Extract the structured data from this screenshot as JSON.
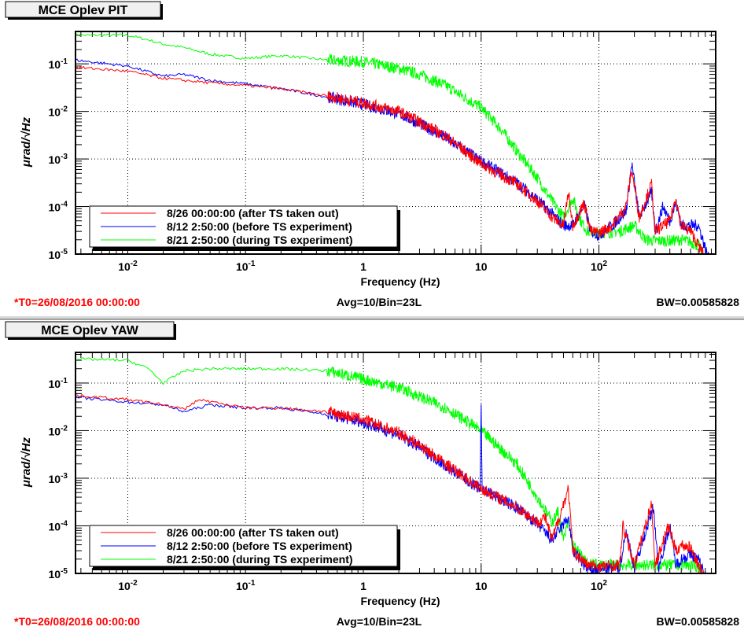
{
  "colors": {
    "red": "#ff0000",
    "blue": "#0000ff",
    "green": "#00ff00",
    "footer_red": "#ff0000"
  },
  "chart_data": [
    {
      "type": "line",
      "title": "MCE Oplev PIT",
      "xlabel": "Frequency (Hz)",
      "ylabel": "μrad/√Hz",
      "xscale": "log",
      "yscale": "log",
      "xlim": [
        0.0036,
        980
      ],
      "ylim": [
        1e-05,
        0.48
      ],
      "xticks": [
        {
          "v": 0.01,
          "base": "10",
          "exp": "-2"
        },
        {
          "v": 0.1,
          "base": "10",
          "exp": "-1"
        },
        {
          "v": 1,
          "base": "1",
          "exp": ""
        },
        {
          "v": 10,
          "base": "10",
          "exp": ""
        },
        {
          "v": 100,
          "base": "10",
          "exp": "2"
        }
      ],
      "yticks": [
        {
          "v": 0.1,
          "exp": "-1"
        },
        {
          "v": 0.01,
          "exp": "-2"
        },
        {
          "v": 0.001,
          "exp": "-3"
        },
        {
          "v": 0.0001,
          "exp": "-4"
        },
        {
          "v": 1e-05,
          "exp": "-5"
        }
      ],
      "grid": true,
      "legend_position": "bottom-left",
      "footer": {
        "t0": "*T0=26/08/2016 00:00:00",
        "avg": "Avg=10/Bin=23L",
        "bw": "BW=0.00585828"
      },
      "series": [
        {
          "name": "8/21 2:50:00 (during TS experiment)",
          "color": "green",
          "points": [
            [
              0.0036,
              0.4
            ],
            [
              0.01,
              0.4
            ],
            [
              0.015,
              0.32
            ],
            [
              0.02,
              0.26
            ],
            [
              0.03,
              0.22
            ],
            [
              0.05,
              0.16
            ],
            [
              0.1,
              0.13
            ],
            [
              0.2,
              0.15
            ],
            [
              0.5,
              0.12
            ],
            [
              1,
              0.11
            ],
            [
              2,
              0.08
            ],
            [
              3,
              0.06
            ],
            [
              5,
              0.035
            ],
            [
              10,
              0.012
            ],
            [
              15,
              0.004
            ],
            [
              20,
              0.0015
            ],
            [
              30,
              0.0004
            ],
            [
              40,
              0.00013
            ],
            [
              50,
              6e-05
            ],
            [
              60,
              0.00015
            ],
            [
              70,
              5e-05
            ],
            [
              80,
              3e-05
            ],
            [
              100,
              2.8e-05
            ],
            [
              150,
              3e-05
            ],
            [
              200,
              4e-05
            ],
            [
              250,
              2e-05
            ],
            [
              300,
              1.9e-05
            ],
            [
              400,
              1.9e-05
            ],
            [
              500,
              2e-05
            ],
            [
              600,
              1.8e-05
            ],
            [
              700,
              1.5e-05
            ],
            [
              900,
              5e-06
            ]
          ]
        },
        {
          "name": "8/12 2:50:00 (before TS experiment)",
          "color": "blue",
          "points": [
            [
              0.0036,
              0.12
            ],
            [
              0.01,
              0.09
            ],
            [
              0.02,
              0.055
            ],
            [
              0.03,
              0.06
            ],
            [
              0.05,
              0.045
            ],
            [
              0.1,
              0.038
            ],
            [
              0.2,
              0.03
            ],
            [
              0.5,
              0.02
            ],
            [
              1,
              0.014
            ],
            [
              2,
              0.009
            ],
            [
              3,
              0.0055
            ],
            [
              5,
              0.0028
            ],
            [
              10,
              0.0009
            ],
            [
              20,
              0.00032
            ],
            [
              30,
              0.00014
            ],
            [
              40,
              7e-05
            ],
            [
              50,
              4e-05
            ],
            [
              60,
              4e-05
            ],
            [
              75,
              0.00011
            ],
            [
              85,
              3e-05
            ],
            [
              100,
              2.5e-05
            ],
            [
              130,
              4e-05
            ],
            [
              170,
              8e-05
            ],
            [
              190,
              0.0008
            ],
            [
              220,
              6e-05
            ],
            [
              280,
              0.0002
            ],
            [
              300,
              3e-05
            ],
            [
              350,
              0.0001
            ],
            [
              400,
              5e-05
            ],
            [
              450,
              0.00012
            ],
            [
              500,
              4e-05
            ],
            [
              600,
              4e-05
            ],
            [
              700,
              4e-05
            ],
            [
              900,
              5e-06
            ]
          ]
        },
        {
          "name": "8/26 00:00:00 (after TS taken out)",
          "color": "red",
          "points": [
            [
              0.0036,
              0.085
            ],
            [
              0.01,
              0.07
            ],
            [
              0.02,
              0.05
            ],
            [
              0.03,
              0.045
            ],
            [
              0.05,
              0.04
            ],
            [
              0.1,
              0.035
            ],
            [
              0.2,
              0.03
            ],
            [
              0.5,
              0.021
            ],
            [
              1,
              0.015
            ],
            [
              2,
              0.01
            ],
            [
              3,
              0.006
            ],
            [
              5,
              0.003
            ],
            [
              10,
              0.0008
            ],
            [
              20,
              0.0003
            ],
            [
              30,
              0.00013
            ],
            [
              40,
              6e-05
            ],
            [
              50,
              4e-05
            ],
            [
              55,
              0.0002
            ],
            [
              60,
              4e-05
            ],
            [
              75,
              0.00012
            ],
            [
              85,
              3e-05
            ],
            [
              100,
              2.8e-05
            ],
            [
              130,
              4e-05
            ],
            [
              170,
              0.0001
            ],
            [
              190,
              0.0006
            ],
            [
              220,
              6e-05
            ],
            [
              280,
              0.0003
            ],
            [
              300,
              3e-05
            ],
            [
              400,
              5e-05
            ],
            [
              450,
              0.00015
            ],
            [
              500,
              4e-05
            ],
            [
              600,
              3e-05
            ],
            [
              900,
              5e-06
            ]
          ]
        }
      ]
    },
    {
      "type": "line",
      "title": "MCE Oplev YAW",
      "xlabel": "Frequency (Hz)",
      "ylabel": "μrad/√Hz",
      "xscale": "log",
      "yscale": "log",
      "xlim": [
        0.0036,
        980
      ],
      "ylim": [
        1e-05,
        0.44
      ],
      "xticks": [
        {
          "v": 0.01,
          "base": "10",
          "exp": "-2"
        },
        {
          "v": 0.1,
          "base": "10",
          "exp": "-1"
        },
        {
          "v": 1,
          "base": "1",
          "exp": ""
        },
        {
          "v": 10,
          "base": "10",
          "exp": ""
        },
        {
          "v": 100,
          "base": "10",
          "exp": "2"
        }
      ],
      "yticks": [
        {
          "v": 0.1,
          "exp": "-1"
        },
        {
          "v": 0.01,
          "exp": "-2"
        },
        {
          "v": 0.001,
          "exp": "-3"
        },
        {
          "v": 0.0001,
          "exp": "-4"
        },
        {
          "v": 1e-05,
          "exp": "-5"
        }
      ],
      "grid": true,
      "legend_position": "bottom-left",
      "footer": {
        "t0": "*T0=26/08/2016 00:00:00",
        "avg": "Avg=10/Bin=23L",
        "bw": "BW=0.00585828"
      },
      "series": [
        {
          "name": "8/21 2:50:00 (during TS experiment)",
          "color": "green",
          "points": [
            [
              0.0036,
              0.32
            ],
            [
              0.01,
              0.3
            ],
            [
              0.015,
              0.2
            ],
            [
              0.02,
              0.1
            ],
            [
              0.03,
              0.18
            ],
            [
              0.05,
              0.2
            ],
            [
              0.1,
              0.2
            ],
            [
              0.2,
              0.2
            ],
            [
              0.5,
              0.18
            ],
            [
              1,
              0.12
            ],
            [
              2,
              0.08
            ],
            [
              5,
              0.03
            ],
            [
              10,
              0.01
            ],
            [
              20,
              0.002
            ],
            [
              30,
              0.0004
            ],
            [
              40,
              0.00012
            ],
            [
              45,
              0.0002
            ],
            [
              50,
              5e-05
            ],
            [
              55,
              0.00012
            ],
            [
              60,
              4e-05
            ],
            [
              80,
              1.6e-05
            ],
            [
              100,
              1.5e-05
            ],
            [
              200,
              1.5e-05
            ],
            [
              600,
              1.5e-05
            ],
            [
              700,
              1.4e-05
            ],
            [
              900,
              4e-06
            ]
          ]
        },
        {
          "name": "8/12 2:50:00 (before TS experiment)",
          "color": "blue",
          "points": [
            [
              0.0036,
              0.05
            ],
            [
              0.01,
              0.04
            ],
            [
              0.02,
              0.035
            ],
            [
              0.03,
              0.025
            ],
            [
              0.05,
              0.035
            ],
            [
              0.1,
              0.03
            ],
            [
              0.2,
              0.03
            ],
            [
              0.5,
              0.022
            ],
            [
              1,
              0.015
            ],
            [
              2,
              0.008
            ],
            [
              3,
              0.0045
            ],
            [
              5,
              0.0018
            ],
            [
              9.8,
              0.0006
            ],
            [
              10,
              0.04
            ],
            [
              10.2,
              0.0006
            ],
            [
              20,
              0.00024
            ],
            [
              30,
              0.00011
            ],
            [
              40,
              5e-05
            ],
            [
              55,
              0.00015
            ],
            [
              60,
              3e-05
            ],
            [
              80,
              1.2e-05
            ],
            [
              100,
              1.2e-05
            ],
            [
              150,
              1.3e-05
            ],
            [
              170,
              8e-05
            ],
            [
              200,
              1.3e-05
            ],
            [
              290,
              0.00025
            ],
            [
              320,
              1.3e-05
            ],
            [
              400,
              0.0001
            ],
            [
              450,
              1.5e-05
            ],
            [
              500,
              2e-05
            ],
            [
              600,
              2.5e-05
            ],
            [
              700,
              2e-05
            ],
            [
              900,
              4e-06
            ]
          ]
        },
        {
          "name": "8/26 00:00:00 (after TS taken out)",
          "color": "red",
          "points": [
            [
              0.0036,
              0.055
            ],
            [
              0.01,
              0.045
            ],
            [
              0.02,
              0.035
            ],
            [
              0.03,
              0.028
            ],
            [
              0.04,
              0.045
            ],
            [
              0.1,
              0.03
            ],
            [
              0.2,
              0.03
            ],
            [
              0.5,
              0.025
            ],
            [
              1,
              0.017
            ],
            [
              2,
              0.009
            ],
            [
              3,
              0.005
            ],
            [
              5,
              0.002
            ],
            [
              10,
              0.0006
            ],
            [
              20,
              0.00025
            ],
            [
              30,
              0.00012
            ],
            [
              35,
              0.00015
            ],
            [
              40,
              5e-05
            ],
            [
              55,
              0.0006
            ],
            [
              60,
              3e-05
            ],
            [
              80,
              1.5e-05
            ],
            [
              100,
              1.4e-05
            ],
            [
              150,
              1.5e-05
            ],
            [
              160,
              0.0001
            ],
            [
              200,
              1.5e-05
            ],
            [
              280,
              0.0003
            ],
            [
              300,
              1.5e-05
            ],
            [
              390,
              0.0001
            ],
            [
              450,
              3e-05
            ],
            [
              500,
              4e-05
            ],
            [
              600,
              3.5e-05
            ],
            [
              700,
              1.5e-05
            ],
            [
              900,
              4e-06
            ]
          ]
        }
      ]
    }
  ]
}
